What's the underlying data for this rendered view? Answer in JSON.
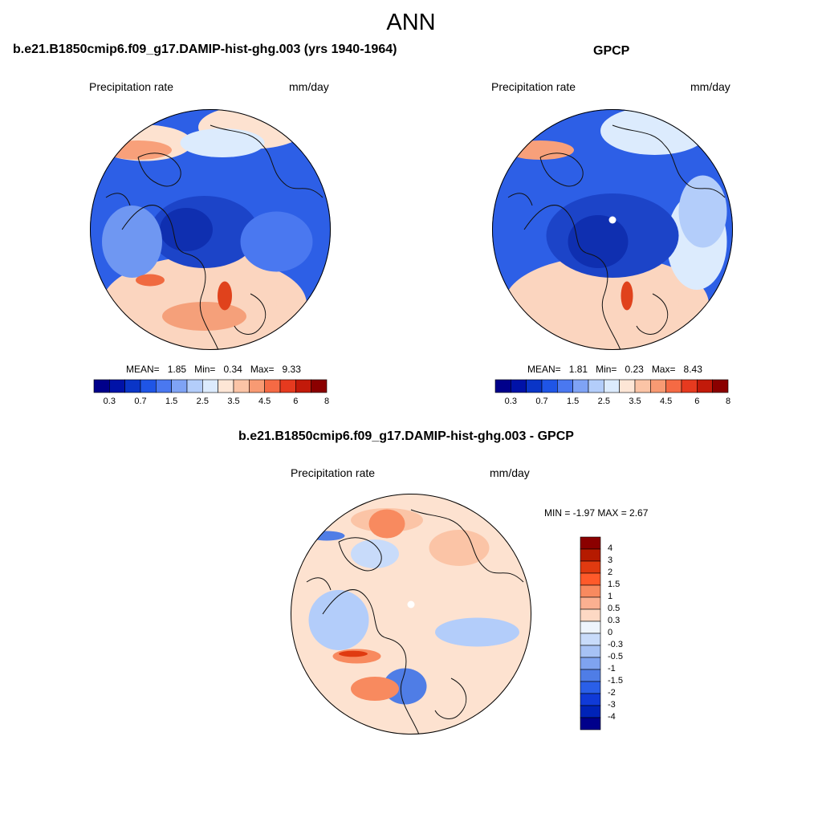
{
  "figure": {
    "title": "ANN"
  },
  "panels": [
    {
      "title": "b.e21.B1850cmip6.f09_g17.DAMIP-hist-ghg.003 (yrs 1940-1964)",
      "left_label": "Precipitation rate",
      "right_label": "mm/day",
      "stats": {
        "mean_label": "MEAN=",
        "mean": "1.85",
        "min_label": "Min=",
        "min": "0.34",
        "max_label": "Max=",
        "max": "9.33"
      }
    },
    {
      "title": "GPCP",
      "left_label": "Precipitation rate",
      "right_label": "mm/day",
      "stats": {
        "mean_label": "MEAN=",
        "mean": "1.81",
        "min_label": "Min=",
        "min": "0.23",
        "max_label": "Max=",
        "max": "8.43"
      }
    },
    {
      "title": "b.e21.B1850cmip6.f09_g17.DAMIP-hist-ghg.003 - GPCP",
      "left_label": "Precipitation rate",
      "right_label": "mm/day",
      "stats_line": "MIN =  -1.97 MAX =   2.67"
    }
  ],
  "colorbars": {
    "horizontal": {
      "colors": [
        "#00008b",
        "#0012a8",
        "#0a35c7",
        "#1f55e6",
        "#4a78f0",
        "#7fa3f5",
        "#b3cdfa",
        "#dcebfd",
        "#fde6d6",
        "#fbc4a6",
        "#f89a73",
        "#f56a44",
        "#e63a1f",
        "#c21a0a",
        "#8b0000"
      ],
      "tick_labels": [
        "0.3",
        "0.7",
        "1.5",
        "2.5",
        "3.5",
        "4.5",
        "6",
        "8"
      ]
    },
    "vertical": {
      "colors_top_to_bottom": [
        "#8b0000",
        "#b51a00",
        "#e03a10",
        "#ff5a2a",
        "#f88a5f",
        "#fbb091",
        "#fdd9c4",
        "#eef4fc",
        "#c8dbfa",
        "#a7c2f5",
        "#7fa3f0",
        "#4f7de6",
        "#2a5fe8",
        "#103ad8",
        "#0023b8",
        "#00008b"
      ],
      "tick_labels": [
        "4",
        "3",
        "2",
        "1.5",
        "1",
        "0.5",
        "0.3",
        "0",
        "-0.3",
        "-0.5",
        "-1",
        "-1.5",
        "-2",
        "-3",
        "-4"
      ]
    }
  },
  "map_fields": {
    "model": {
      "background": "#2d5fe6",
      "blobs": [
        {
          "color": "#fbd5bf",
          "ellipse": [
            -0.05,
            0.62,
            0.85,
            0.4
          ]
        },
        {
          "color": "#fbd5bf",
          "ellipse": [
            0.0,
            0.6,
            0.55,
            0.45
          ]
        },
        {
          "color": "#f5a07a",
          "ellipse": [
            -0.05,
            0.72,
            0.35,
            0.12
          ]
        },
        {
          "color": "#fde2d0",
          "ellipse": [
            0.35,
            -0.85,
            0.45,
            0.18
          ]
        },
        {
          "color": "#fde2d0",
          "ellipse": [
            -0.55,
            -0.72,
            0.4,
            0.15
          ]
        },
        {
          "color": "#dcebfd",
          "ellipse": [
            0.1,
            -0.72,
            0.35,
            0.12
          ]
        },
        {
          "color": "#1c44c8",
          "ellipse": [
            -0.05,
            0.02,
            0.45,
            0.3
          ]
        },
        {
          "color": "#0f2fb0",
          "ellipse": [
            -0.2,
            0.0,
            0.22,
            0.18
          ]
        },
        {
          "color": "#4a78f0",
          "ellipse": [
            0.55,
            0.1,
            0.3,
            0.25
          ]
        },
        {
          "color": "#6f97f2",
          "ellipse": [
            -0.65,
            0.1,
            0.25,
            0.3
          ]
        },
        {
          "color": "#e0421c",
          "ellipse": [
            0.12,
            0.55,
            0.06,
            0.12
          ]
        },
        {
          "color": "#f06a40",
          "ellipse": [
            -0.5,
            0.42,
            0.12,
            0.05
          ]
        },
        {
          "color": "#b51a00",
          "ellipse": [
            -0.68,
            -0.63,
            0.22,
            0.035
          ]
        },
        {
          "color": "#f8a07a",
          "ellipse": [
            -0.6,
            -0.66,
            0.28,
            0.08
          ]
        }
      ]
    },
    "obs": {
      "background": "#2d5fe6",
      "blobs": [
        {
          "color": "#fbd5bf",
          "ellipse": [
            -0.05,
            0.62,
            0.85,
            0.4
          ]
        },
        {
          "color": "#fbd5bf",
          "ellipse": [
            0.0,
            0.6,
            0.55,
            0.45
          ]
        },
        {
          "color": "#dcebfd",
          "ellipse": [
            0.35,
            -0.82,
            0.45,
            0.2
          ]
        },
        {
          "color": "#dcebfd",
          "ellipse": [
            0.7,
            0.1,
            0.25,
            0.4
          ]
        },
        {
          "color": "#b3cdfa",
          "ellipse": [
            0.75,
            -0.15,
            0.2,
            0.3
          ]
        },
        {
          "color": "#1c44c8",
          "ellipse": [
            0.0,
            0.05,
            0.55,
            0.35
          ]
        },
        {
          "color": "#0f2fb0",
          "ellipse": [
            -0.12,
            0.1,
            0.25,
            0.22
          ]
        },
        {
          "color": "#e0421c",
          "ellipse": [
            0.12,
            0.55,
            0.05,
            0.12
          ]
        },
        {
          "color": "#b51a00",
          "ellipse": [
            -0.68,
            -0.63,
            0.22,
            0.035
          ]
        },
        {
          "color": "#f8a07a",
          "ellipse": [
            -0.6,
            -0.66,
            0.28,
            0.08
          ]
        },
        {
          "color": "#ffffff",
          "ellipse": [
            0.0,
            -0.08,
            0.03,
            0.03
          ]
        }
      ]
    },
    "diff": {
      "background": "#fde2d0",
      "blobs": [
        {
          "color": "#fbc4a6",
          "ellipse": [
            0.4,
            -0.55,
            0.25,
            0.15
          ]
        },
        {
          "color": "#fbc4a6",
          "ellipse": [
            -0.2,
            -0.78,
            0.3,
            0.1
          ]
        },
        {
          "color": "#b3cdfa",
          "ellipse": [
            0.55,
            0.15,
            0.35,
            0.12
          ]
        },
        {
          "color": "#b3cdfa",
          "ellipse": [
            -0.6,
            0.05,
            0.25,
            0.25
          ]
        },
        {
          "color": "#c8dbfa",
          "ellipse": [
            -0.3,
            -0.5,
            0.2,
            0.12
          ]
        },
        {
          "color": "#f88a5f",
          "ellipse": [
            -0.45,
            0.35,
            0.2,
            0.06
          ]
        },
        {
          "color": "#e03a10",
          "ellipse": [
            -0.48,
            0.33,
            0.12,
            0.025
          ]
        },
        {
          "color": "#f88a5f",
          "ellipse": [
            -0.2,
            -0.75,
            0.15,
            0.12
          ]
        },
        {
          "color": "#4f7de6",
          "ellipse": [
            -0.7,
            -0.65,
            0.15,
            0.04
          ]
        },
        {
          "color": "#4f7de6",
          "ellipse": [
            -0.05,
            0.6,
            0.18,
            0.15
          ]
        },
        {
          "color": "#f88a5f",
          "ellipse": [
            -0.3,
            0.62,
            0.2,
            0.1
          ]
        },
        {
          "color": "#ffffff",
          "ellipse": [
            0.0,
            -0.08,
            0.03,
            0.03
          ]
        }
      ]
    }
  }
}
